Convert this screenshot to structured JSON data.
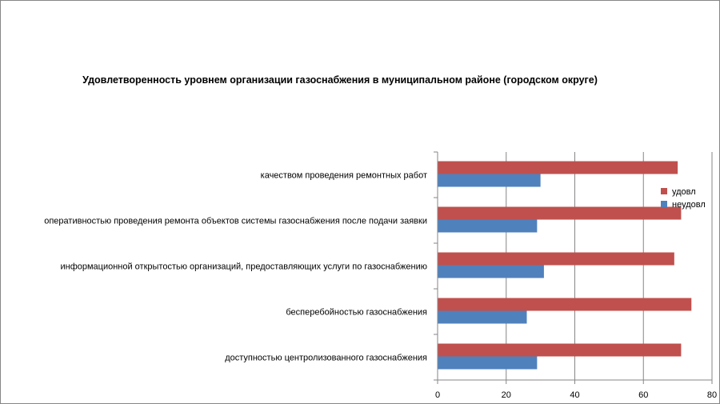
{
  "chart_data": {
    "type": "bar",
    "orientation": "horizontal",
    "title": "Удовлетворенность уровнем организации газоснабжения в муниципальном районе (городском округе)",
    "categories": [
      "качеством проведения ремонтных работ",
      "оперативностью проведения ремонта объектов системы газоснабжения после подачи заявки",
      "информационной открытостью организаций, предоставляющих услуги по газоснабжению",
      "бесперебойностью газоснабжения",
      "доступностью центролизованного газоснабжения"
    ],
    "series": [
      {
        "name": "удовл",
        "color": "#c0504d",
        "values": [
          70,
          71,
          69,
          74,
          71
        ]
      },
      {
        "name": "неудовл",
        "color": "#4f81bd",
        "values": [
          30,
          29,
          31,
          26,
          29
        ]
      }
    ],
    "xlim": [
      0,
      80
    ],
    "xticks": [
      0,
      20,
      40,
      60,
      80
    ],
    "grid": true,
    "legend_position": "right",
    "xlabel": "",
    "ylabel": ""
  }
}
